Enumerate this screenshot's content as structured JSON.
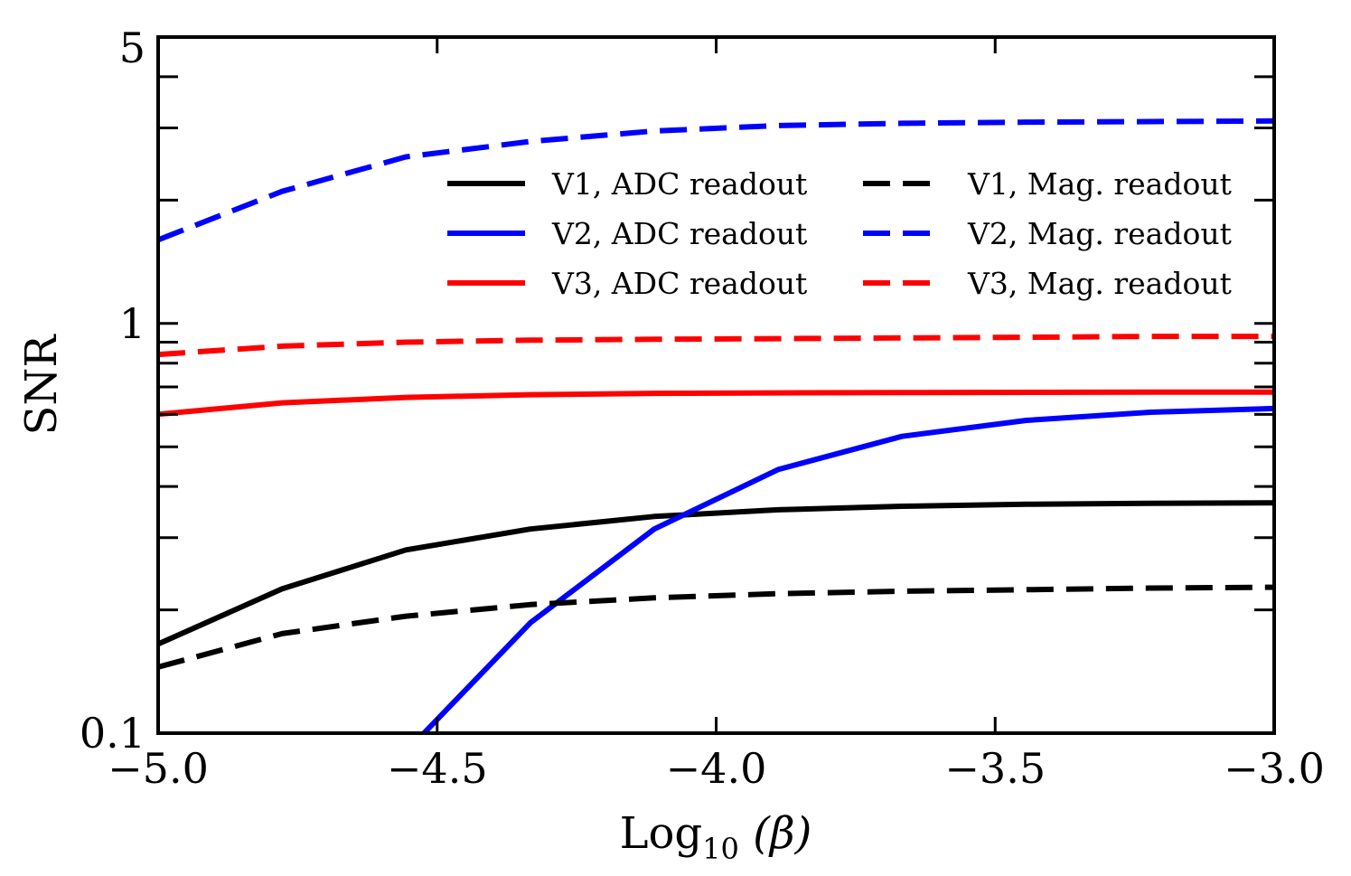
{
  "chart_data": {
    "type": "line",
    "xlabel": {
      "base": "Log",
      "sub": "10",
      "rest": " (β)"
    },
    "ylabel": "SNR",
    "yscale": "log",
    "xlim": [
      -5.0,
      -3.0
    ],
    "ylim": [
      0.1,
      5
    ],
    "x_ticks": [
      -5.0,
      -4.5,
      -4.0,
      -3.5,
      -3.0
    ],
    "x_tick_labels": [
      "−5.0",
      "−4.5",
      "−4.0",
      "−3.5",
      "−3.0"
    ],
    "y_tick_labels": [
      {
        "value": 5,
        "label": "5"
      },
      {
        "value": 1,
        "label": "1"
      },
      {
        "value": 0.1,
        "label": "0.1"
      }
    ],
    "y_minor_ticks": [
      0.2,
      0.3,
      0.4,
      0.5,
      0.6,
      0.7,
      0.8,
      0.9,
      2,
      3,
      4
    ],
    "grid": false,
    "legend_position": "upper-right, two columns",
    "x": [
      -5.0,
      -4.778,
      -4.556,
      -4.333,
      -4.111,
      -3.889,
      -3.667,
      -3.444,
      -3.222,
      -3.0
    ],
    "series": [
      {
        "name": "V1, ADC readout",
        "color": "#000000",
        "dash": "solid",
        "values": [
          0.165,
          0.225,
          0.28,
          0.315,
          0.338,
          0.351,
          0.358,
          0.362,
          0.364,
          0.365
        ]
      },
      {
        "name": "V2, ADC readout",
        "color": "#0000ff",
        "dash": "solid",
        "values": [
          null,
          null,
          0.09,
          0.186,
          0.315,
          0.44,
          0.53,
          0.58,
          0.607,
          0.62
        ]
      },
      {
        "name": "V3, ADC readout",
        "color": "#ff0000",
        "dash": "solid",
        "values": [
          0.6,
          0.64,
          0.66,
          0.67,
          0.675,
          0.677,
          0.678,
          0.679,
          0.68,
          0.68
        ]
      },
      {
        "name": "V1, Mag. readout",
        "color": "#000000",
        "dash": "dashed",
        "values": [
          0.145,
          0.175,
          0.193,
          0.206,
          0.214,
          0.219,
          0.222,
          0.224,
          0.226,
          0.227
        ]
      },
      {
        "name": "V2, Mag. readout",
        "color": "#0000ff",
        "dash": "dashed",
        "values": [
          1.6,
          2.1,
          2.55,
          2.78,
          2.95,
          3.04,
          3.08,
          3.1,
          3.11,
          3.12
        ]
      },
      {
        "name": "V3, Mag. readout",
        "color": "#ff0000",
        "dash": "dashed",
        "values": [
          0.84,
          0.88,
          0.9,
          0.91,
          0.915,
          0.918,
          0.922,
          0.925,
          0.93,
          0.93
        ]
      }
    ]
  }
}
